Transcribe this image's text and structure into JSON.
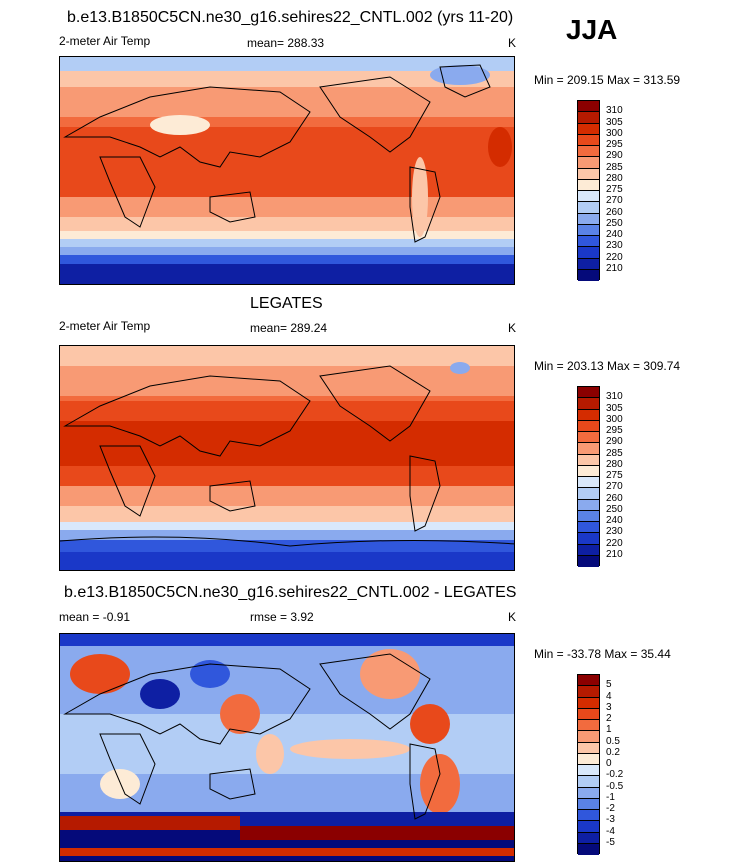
{
  "season": "JJA",
  "panels": [
    {
      "title": "b.e13.B1850C5CN.ne30_g16.sehires22_CNTL.002 (yrs 11-20)",
      "variable": "2-meter Air Temp",
      "stat1": "mean= 288.33",
      "units": "K",
      "minmax": "Min = 209.15 Max = 313.59",
      "levels": [
        "310",
        "305",
        "300",
        "295",
        "290",
        "285",
        "280",
        "275",
        "270",
        "260",
        "250",
        "240",
        "230",
        "220",
        "210"
      ],
      "colors": [
        "#8b0000",
        "#b51a00",
        "#d42c00",
        "#e8491b",
        "#f26b3e",
        "#f89a74",
        "#fcc6a8",
        "#fdebd6",
        "#d9e8fb",
        "#b2cdf5",
        "#8aaaee",
        "#5a82e6",
        "#3057dc",
        "#1a38c8",
        "#0e1fa3",
        "#050a7a"
      ]
    },
    {
      "title": "LEGATES",
      "variable": "2-meter Air Temp",
      "stat1": "mean= 289.24",
      "units": "K",
      "minmax": "Min = 203.13 Max = 309.74",
      "levels": [
        "310",
        "305",
        "300",
        "295",
        "290",
        "285",
        "280",
        "275",
        "270",
        "260",
        "250",
        "240",
        "230",
        "220",
        "210"
      ],
      "colors": [
        "#8b0000",
        "#b51a00",
        "#d42c00",
        "#e8491b",
        "#f26b3e",
        "#f89a74",
        "#fcc6a8",
        "#fdebd6",
        "#d9e8fb",
        "#b2cdf5",
        "#8aaaee",
        "#5a82e6",
        "#3057dc",
        "#1a38c8",
        "#0e1fa3",
        "#050a7a"
      ]
    },
    {
      "title": "b.e13.B1850C5CN.ne30_g16.sehires22_CNTL.002 - LEGATES",
      "variable": "mean =  -0.91",
      "stat1": "rmse =    3.92",
      "units": "K",
      "minmax": "Min = -33.78 Max =  35.44",
      "levels": [
        "5",
        "4",
        "3",
        "2",
        "1",
        "0.5",
        "0.2",
        "0",
        "-0.2",
        "-0.5",
        "-1",
        "-2",
        "-3",
        "-4",
        "-5"
      ],
      "colors": [
        "#8b0000",
        "#b51a00",
        "#d42c00",
        "#e8491b",
        "#f26b3e",
        "#f89a74",
        "#fcc6a8",
        "#fdebd6",
        "#d9e8fb",
        "#b2cdf5",
        "#8aaaee",
        "#5a82e6",
        "#3057dc",
        "#1a38c8",
        "#0e1fa3",
        "#050a7a"
      ]
    }
  ]
}
